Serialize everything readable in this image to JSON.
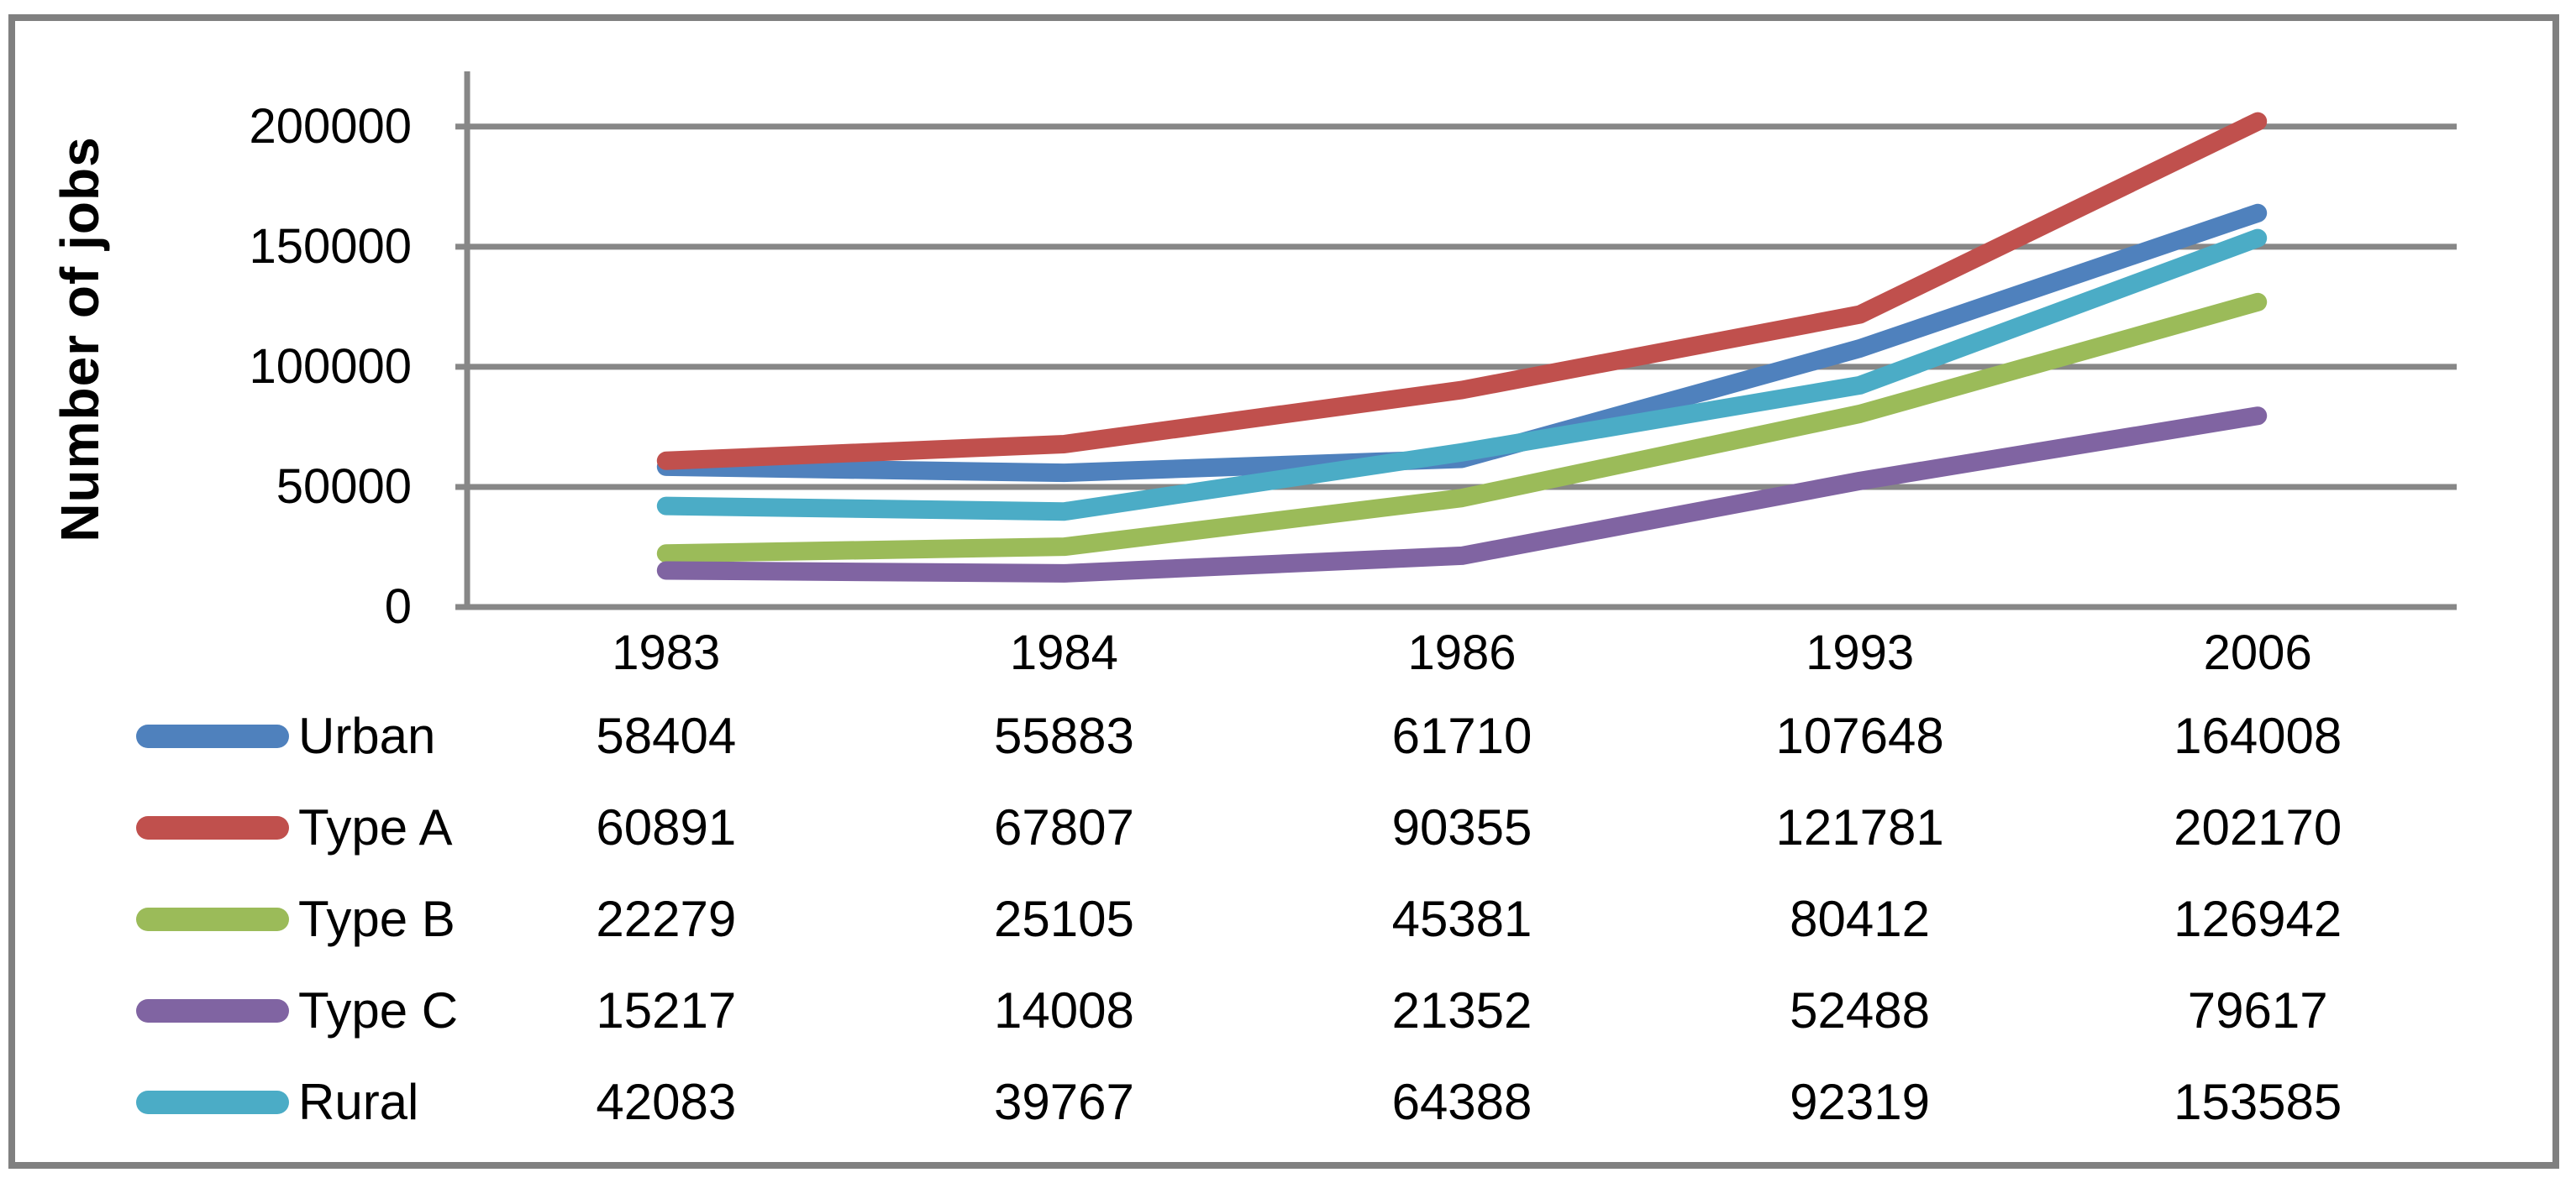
{
  "figure": {
    "background": "#ffffff",
    "frame_color": "#808080",
    "grid_color": "#878787",
    "text_color": "#000000"
  },
  "chart_data": {
    "type": "line",
    "title": "",
    "ylabel": "Number of jobs",
    "xlabel": "",
    "categories": [
      "1983",
      "1984",
      "1986",
      "1993",
      "2006"
    ],
    "series": [
      {
        "name": "Urban",
        "color": "#4F81BD",
        "values": [
          58404,
          55883,
          61710,
          107648,
          164008
        ]
      },
      {
        "name": "Type A",
        "color": "#C0504D",
        "values": [
          60891,
          67807,
          90355,
          121781,
          202170
        ]
      },
      {
        "name": "Type B",
        "color": "#9BBB59",
        "values": [
          22279,
          25105,
          45381,
          80412,
          126942
        ]
      },
      {
        "name": "Type C",
        "color": "#8064A2",
        "values": [
          15217,
          14008,
          21352,
          52488,
          79617
        ]
      },
      {
        "name": "Rural",
        "color": "#4BACC6",
        "values": [
          42083,
          39767,
          64388,
          92319,
          153585
        ]
      }
    ],
    "yticks": [
      0,
      50000,
      100000,
      150000,
      200000
    ],
    "ylim": [
      0,
      223000
    ],
    "grid": true,
    "legend_position": "bottom-table-with-values"
  }
}
